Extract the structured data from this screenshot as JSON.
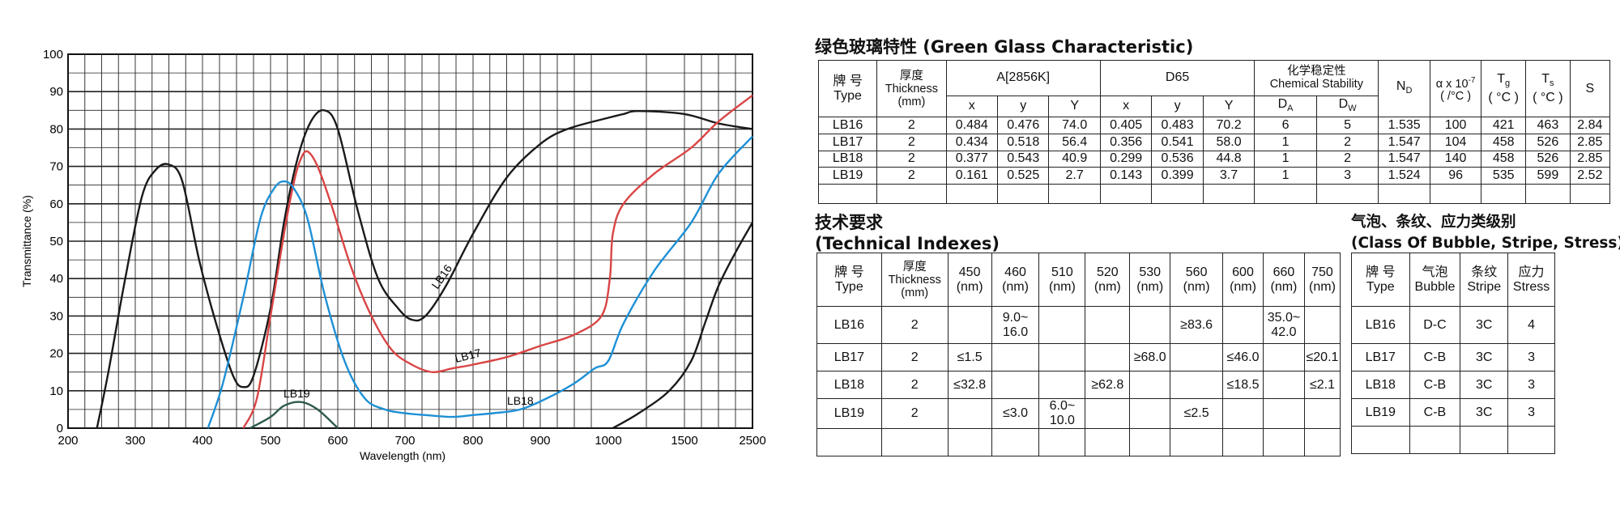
{
  "chart_data": {
    "type": "line",
    "xlabel": "Wavelength (nm)",
    "ylabel": "Transmittance (%)",
    "ylim": [
      0,
      100
    ],
    "x_tick_labels": [
      "200",
      "300",
      "400",
      "500",
      "600",
      "700",
      "800",
      "900",
      "1000",
      "1500",
      "2500"
    ],
    "y_tick_labels": [
      "0",
      "10",
      "20",
      "30",
      "40",
      "50",
      "60",
      "70",
      "80",
      "90",
      "100"
    ],
    "grid": true,
    "series": [
      {
        "name": "LB16",
        "color": "#1a1a1a",
        "points": [
          [
            243,
            0
          ],
          [
            260,
            15
          ],
          [
            285,
            40
          ],
          [
            310,
            62
          ],
          [
            330,
            69
          ],
          [
            350,
            70.5
          ],
          [
            370,
            66
          ],
          [
            395,
            45
          ],
          [
            420,
            28
          ],
          [
            445,
            14
          ],
          [
            460,
            11
          ],
          [
            475,
            14
          ],
          [
            500,
            32
          ],
          [
            520,
            55
          ],
          [
            540,
            72
          ],
          [
            560,
            82
          ],
          [
            580,
            85
          ],
          [
            600,
            80
          ],
          [
            630,
            58
          ],
          [
            660,
            40
          ],
          [
            690,
            32
          ],
          [
            710,
            29
          ],
          [
            730,
            30
          ],
          [
            760,
            38
          ],
          [
            800,
            52
          ],
          [
            850,
            67
          ],
          [
            900,
            76
          ],
          [
            940,
            80
          ],
          [
            1000,
            83
          ],
          [
            1100,
            84
          ],
          [
            1200,
            84.8
          ],
          [
            1500,
            84
          ],
          [
            2000,
            81.5
          ],
          [
            2500,
            80
          ]
        ]
      },
      {
        "name": "LB17",
        "color": "#d94545",
        "points": [
          [
            460,
            0
          ],
          [
            480,
            8
          ],
          [
            500,
            30
          ],
          [
            520,
            52
          ],
          [
            535,
            66
          ],
          [
            545,
            72
          ],
          [
            555,
            74
          ],
          [
            570,
            70
          ],
          [
            590,
            60
          ],
          [
            620,
            43
          ],
          [
            650,
            30
          ],
          [
            680,
            21
          ],
          [
            710,
            17
          ],
          [
            740,
            15
          ],
          [
            770,
            16
          ],
          [
            800,
            17
          ],
          [
            850,
            19
          ],
          [
            900,
            22
          ],
          [
            950,
            25
          ],
          [
            990,
            30
          ],
          [
            1010,
            40
          ],
          [
            1030,
            52
          ],
          [
            1100,
            60
          ],
          [
            1300,
            68
          ],
          [
            1600,
            75
          ],
          [
            2000,
            82
          ],
          [
            2500,
            89
          ]
        ]
      },
      {
        "name": "LB18",
        "color": "#1e90d6",
        "points": [
          [
            408,
            0
          ],
          [
            430,
            12
          ],
          [
            460,
            35
          ],
          [
            485,
            56
          ],
          [
            505,
            64
          ],
          [
            520,
            66
          ],
          [
            535,
            64
          ],
          [
            555,
            56
          ],
          [
            580,
            36
          ],
          [
            610,
            18
          ],
          [
            640,
            8
          ],
          [
            670,
            5
          ],
          [
            700,
            4
          ],
          [
            730,
            3.5
          ],
          [
            770,
            3
          ],
          [
            800,
            3.5
          ],
          [
            830,
            4
          ],
          [
            870,
            5
          ],
          [
            910,
            8
          ],
          [
            950,
            12
          ],
          [
            980,
            16
          ],
          [
            1000,
            18
          ],
          [
            1100,
            28
          ],
          [
            1300,
            42
          ],
          [
            1600,
            55
          ],
          [
            2000,
            68
          ],
          [
            2500,
            78
          ]
        ]
      },
      {
        "name": "LB19",
        "color": "#2d5a4c",
        "points": [
          [
            470,
            0
          ],
          [
            500,
            3
          ],
          [
            520,
            6
          ],
          [
            545,
            7
          ],
          [
            570,
            5
          ],
          [
            600,
            0
          ]
        ]
      },
      {
        "name": "",
        "color": "#1a1a1a",
        "points": [
          [
            1030,
            0
          ],
          [
            1200,
            4
          ],
          [
            1400,
            10
          ],
          [
            1600,
            18
          ],
          [
            1800,
            28
          ],
          [
            2000,
            38
          ],
          [
            2250,
            47
          ],
          [
            2500,
            55
          ]
        ]
      }
    ],
    "annotations": [
      "LB16",
      "LB17",
      "LB18",
      "LB19"
    ]
  },
  "green": {
    "title": "绿色玻璃特性 (Green Glass Characteristic)",
    "h_type_cn": "牌 号",
    "h_type_en": "Type",
    "h_thick_cn": "厚度",
    "h_thick_en": "Thickness",
    "h_thick_unit": "(mm)",
    "h_a2856": "A[2856K]",
    "h_d65": "D65",
    "h_chem_cn": "化学稳定性",
    "h_chem_en": "Chemical Stability",
    "h_nd": "N",
    "h_nd_sub": "D",
    "h_alpha": "α x 10",
    "h_alpha_sup": "-7",
    "h_alpha_unit": "( /°C )",
    "h_tg": "T",
    "h_tg_sub": "g",
    "h_tg_unit": "( °C )",
    "h_ts": "T",
    "h_ts_sub": "s",
    "h_ts_unit": "( °C )",
    "h_s": "S",
    "h_x": "x",
    "h_y": "y",
    "h_Y": "Y",
    "h_da": "D",
    "h_da_sub": "A",
    "h_dw": "D",
    "h_dw_sub": "W",
    "rows": [
      [
        "LB16",
        "2",
        "0.484",
        "0.476",
        "74.0",
        "0.405",
        "0.483",
        "70.2",
        "6",
        "5",
        "1.535",
        "100",
        "421",
        "463",
        "2.84"
      ],
      [
        "LB17",
        "2",
        "0.434",
        "0.518",
        "56.4",
        "0.356",
        "0.541",
        "58.0",
        "1",
        "2",
        "1.547",
        "104",
        "458",
        "526",
        "2.85"
      ],
      [
        "LB18",
        "2",
        "0.377",
        "0.543",
        "40.9",
        "0.299",
        "0.536",
        "44.8",
        "1",
        "2",
        "1.547",
        "140",
        "458",
        "526",
        "2.85"
      ],
      [
        "LB19",
        "2",
        "0.161",
        "0.525",
        "2.7",
        "0.143",
        "0.399",
        "3.7",
        "1",
        "3",
        "1.524",
        "96",
        "535",
        "599",
        "2.52"
      ]
    ]
  },
  "tech": {
    "title_cn": "技术要求",
    "title_en": "(Technical Indexes)",
    "h_type_cn": "牌 号",
    "h_type_en": "Type",
    "h_thick_cn": "厚度",
    "h_thick_en": "Thickness",
    "h_thick_unit": "(mm)",
    "wavelengths": [
      "450",
      "460",
      "510",
      "520",
      "530",
      "560",
      "600",
      "660",
      "750"
    ],
    "unit": "(nm)",
    "rows": [
      [
        "LB16",
        "2",
        "",
        "9.0~\n16.0",
        "",
        "",
        "",
        "≥83.6",
        "",
        "35.0~\n42.0",
        ""
      ],
      [
        "LB17",
        "2",
        "≤1.5",
        "",
        "",
        "",
        "≥68.0",
        "",
        "≤46.0",
        "",
        "≤20.1"
      ],
      [
        "LB18",
        "2",
        "≤32.8",
        "",
        "",
        "≥62.8",
        "",
        "",
        "≤18.5",
        "",
        "≤2.1"
      ],
      [
        "LB19",
        "2",
        "",
        "≤3.0",
        "6.0~\n10.0",
        "",
        "",
        "≤2.5",
        "",
        "",
        ""
      ]
    ]
  },
  "stress": {
    "title_cn": "气泡、条纹、应力类级别",
    "title_en": "(Class Of Bubble, Stripe, Stress)",
    "h_type_cn": "牌 号",
    "h_type_en": "Type",
    "h_bubble_cn": "气泡",
    "h_bubble_en": "Bubble",
    "h_stripe_cn": "条纹",
    "h_stripe_en": "Stripe",
    "h_stress_cn": "应力",
    "h_stress_en": "Stress",
    "rows": [
      [
        "LB16",
        "D-C",
        "3C",
        "4"
      ],
      [
        "LB17",
        "C-B",
        "3C",
        "3"
      ],
      [
        "LB18",
        "C-B",
        "3C",
        "3"
      ],
      [
        "LB19",
        "C-B",
        "3C",
        "3"
      ]
    ]
  }
}
